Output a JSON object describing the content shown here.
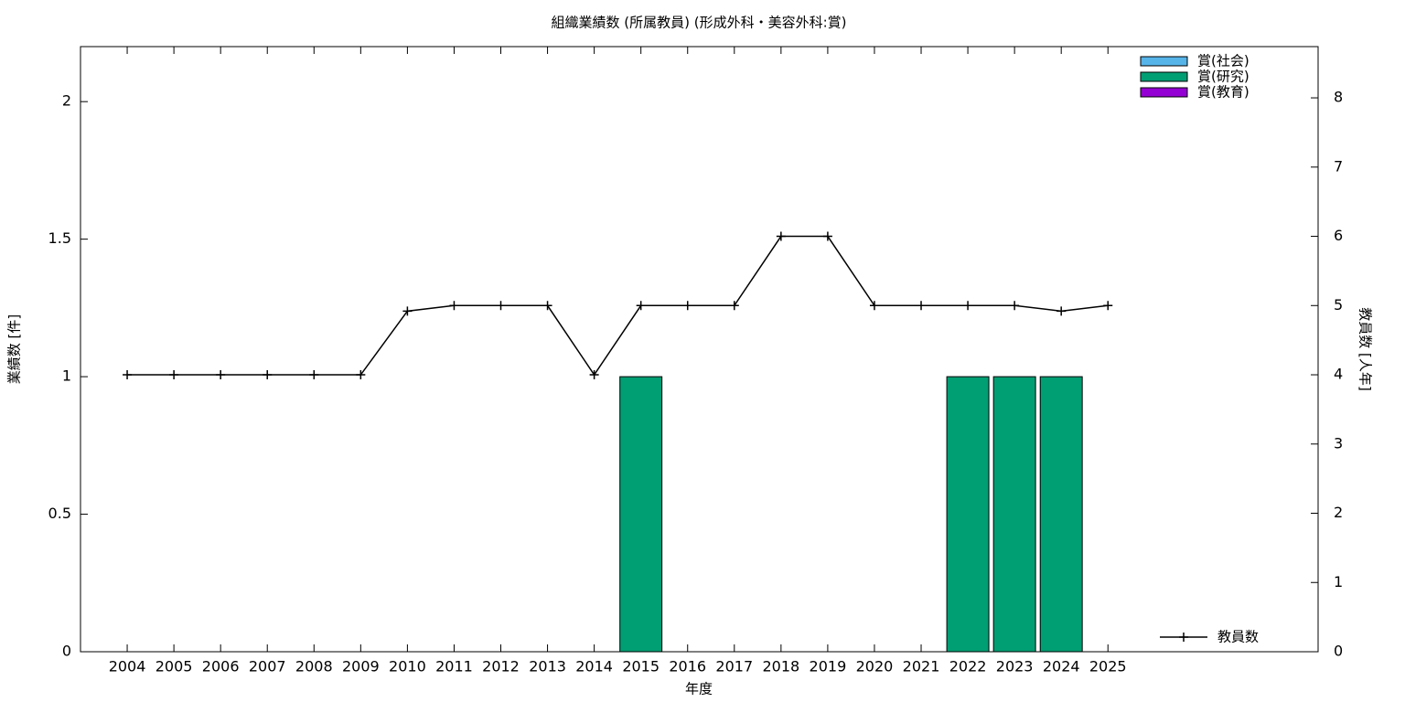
{
  "chart_data": {
    "type": "bar",
    "title": "組織業績数 (所属教員) (形成外科・美容外科:賞)",
    "x_label": "年度",
    "y_label": "業績数 [件]",
    "y2_label": "教員数 [人年]",
    "x": [
      2004,
      2005,
      2006,
      2007,
      2008,
      2009,
      2010,
      2011,
      2012,
      2013,
      2014,
      2015,
      2016,
      2017,
      2018,
      2019,
      2020,
      2021,
      2022,
      2023,
      2024,
      2025
    ],
    "xlim": [
      2003,
      2029.5
    ],
    "xticks": [
      2004,
      2005,
      2006,
      2007,
      2008,
      2009,
      2010,
      2011,
      2012,
      2013,
      2014,
      2015,
      2016,
      2017,
      2018,
      2019,
      2020,
      2021,
      2022,
      2023,
      2024,
      2025
    ],
    "ylim": [
      0,
      2.2
    ],
    "yticks": [
      0,
      0.5,
      1,
      1.5,
      2
    ],
    "y2lim": [
      0,
      8.74
    ],
    "y2ticks": [
      0,
      1,
      2,
      3,
      4,
      5,
      6,
      7,
      8
    ],
    "series": [
      {
        "name": "賞(社会)",
        "type": "bar",
        "color": "#56b4e9",
        "values": [
          0,
          0,
          0,
          0,
          0,
          0,
          0,
          0,
          0,
          0,
          0,
          0,
          0,
          0,
          0,
          0,
          0,
          0,
          0,
          0,
          0,
          0
        ]
      },
      {
        "name": "賞(研究)",
        "type": "bar",
        "color": "#009e73",
        "values": [
          0,
          0,
          0,
          0,
          0,
          0,
          0,
          0,
          0,
          0,
          0,
          1,
          0,
          0,
          0,
          0,
          0,
          0,
          1,
          1,
          1,
          0
        ]
      },
      {
        "name": "賞(教育)",
        "type": "bar",
        "color": "#9400d3",
        "values": [
          0,
          0,
          0,
          0,
          0,
          0,
          0,
          0,
          0,
          0,
          0,
          0,
          0,
          0,
          0,
          0,
          0,
          0,
          0,
          0,
          0,
          0
        ]
      },
      {
        "name": "教員数",
        "type": "line",
        "axis": "y2",
        "color": "#000000",
        "values": [
          4,
          4,
          4,
          4,
          4,
          4,
          4.92,
          5,
          5,
          5,
          4,
          5,
          5,
          5,
          6,
          6,
          5,
          5,
          5,
          5,
          4.92,
          5
        ]
      }
    ]
  }
}
